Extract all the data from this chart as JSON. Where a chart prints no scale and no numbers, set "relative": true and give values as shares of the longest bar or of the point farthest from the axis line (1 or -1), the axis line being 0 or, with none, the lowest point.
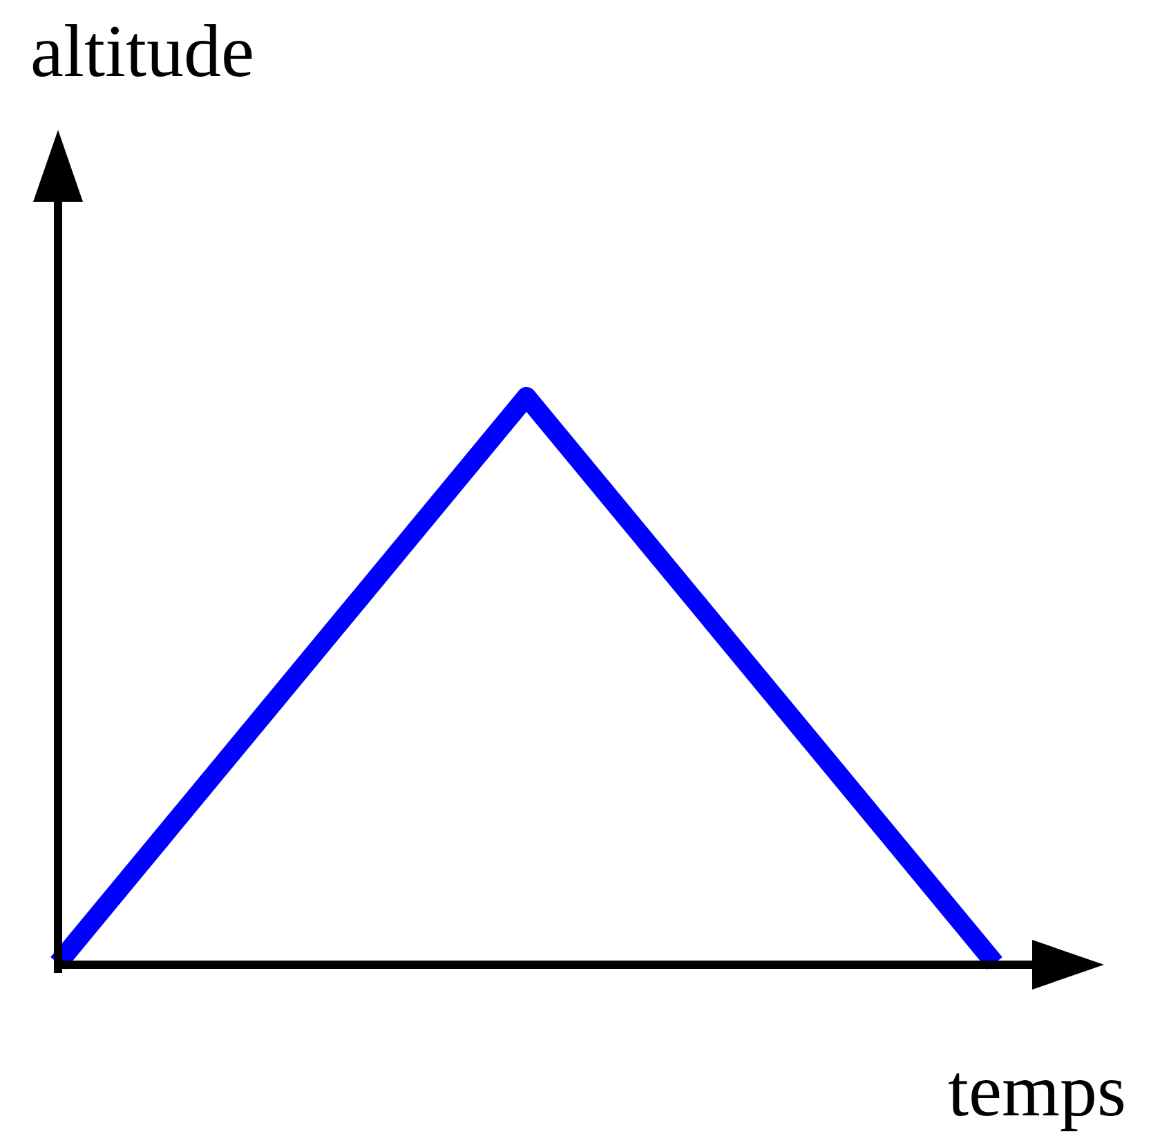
{
  "chart_data": {
    "type": "line",
    "xlabel": "temps",
    "ylabel": "altitude",
    "relative": true,
    "categories": [
      null,
      null,
      null
    ],
    "series": [
      {
        "color": "#0000ff",
        "values": [
          0,
          1,
          0
        ]
      }
    ],
    "marker": "none",
    "line_style": "solid",
    "legend": false
  }
}
